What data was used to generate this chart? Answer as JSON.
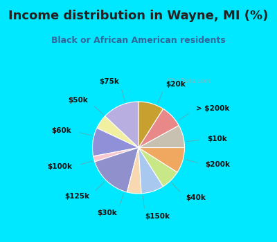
{
  "title": "Income distribution in Wayne, MI (%)",
  "subtitle": "Black or African American residents",
  "watermark": "© City-Data.com",
  "labels": [
    "$20k",
    "> $200k",
    "$10k",
    "$200k",
    "$40k",
    "$150k",
    "$30k",
    "$125k",
    "$100k",
    "$60k",
    "$50k",
    "$75k"
  ],
  "sizes": [
    13,
    5,
    10,
    2,
    16,
    5,
    8,
    7,
    9,
    8,
    8,
    9
  ],
  "colors": [
    "#b8aee0",
    "#f0f0a0",
    "#9090d8",
    "#f8c8d0",
    "#9090cc",
    "#f8d8b0",
    "#a8c8f0",
    "#c8e888",
    "#f0a860",
    "#c8c0b0",
    "#e88888",
    "#c8a030"
  ],
  "bg_top": "#00e8ff",
  "bg_chart_color": "#c8eed8",
  "title_color": "#222222",
  "subtitle_color": "#336699",
  "label_color": "#111111",
  "line_color": "#888888",
  "figsize": [
    4.0,
    3.5
  ],
  "dpi": 100,
  "title_fontsize": 13,
  "subtitle_fontsize": 9,
  "label_fontsize": 7.5
}
